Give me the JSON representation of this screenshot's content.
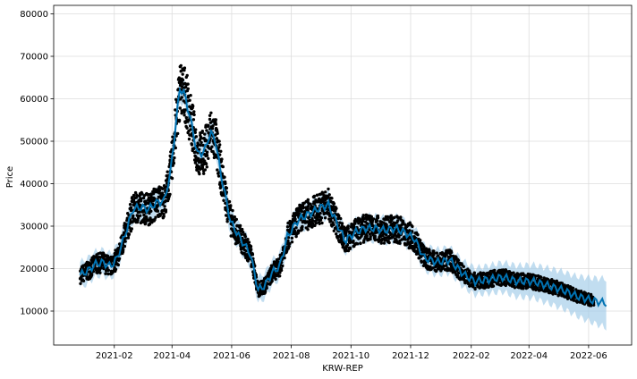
{
  "chart_data": {
    "type": "scatter",
    "xlabel": "KRW-REP",
    "ylabel": "Price",
    "x_ticks": [
      "2021-02",
      "2021-04",
      "2021-06",
      "2021-08",
      "2021-10",
      "2021-12",
      "2022-02",
      "2022-04",
      "2022-06"
    ],
    "y_ticks": [
      "10000",
      "20000",
      "30000",
      "40000",
      "50000",
      "60000",
      "70000",
      "80000"
    ],
    "xlim": [
      "2020-12-01",
      "2022-07-15"
    ],
    "ylim": [
      2000,
      82000
    ],
    "grid": true,
    "colors": {
      "observed": "#000000",
      "forecast": "#0072B2",
      "interval": "#9fcbe8"
    },
    "forecast": [
      {
        "x": "2020-12-28",
        "y": 18500
      },
      {
        "x": "2021-01-05",
        "y": 19500
      },
      {
        "x": "2021-01-12",
        "y": 21000
      },
      {
        "x": "2021-01-20",
        "y": 21500
      },
      {
        "x": "2021-01-28",
        "y": 20500
      },
      {
        "x": "2021-02-04",
        "y": 22500
      },
      {
        "x": "2021-02-12",
        "y": 28000
      },
      {
        "x": "2021-02-20",
        "y": 34000
      },
      {
        "x": "2021-02-28",
        "y": 34500
      },
      {
        "x": "2021-03-08",
        "y": 34000
      },
      {
        "x": "2021-03-16",
        "y": 35500
      },
      {
        "x": "2021-03-24",
        "y": 36000
      },
      {
        "x": "2021-03-30",
        "y": 42000
      },
      {
        "x": "2021-04-04",
        "y": 52000
      },
      {
        "x": "2021-04-09",
        "y": 62500
      },
      {
        "x": "2021-04-14",
        "y": 61000
      },
      {
        "x": "2021-04-20",
        "y": 55000
      },
      {
        "x": "2021-04-27",
        "y": 47000
      },
      {
        "x": "2021-05-04",
        "y": 47500
      },
      {
        "x": "2021-05-10",
        "y": 52000
      },
      {
        "x": "2021-05-15",
        "y": 50500
      },
      {
        "x": "2021-05-22",
        "y": 41000
      },
      {
        "x": "2021-05-31",
        "y": 31000
      },
      {
        "x": "2021-06-10",
        "y": 27000
      },
      {
        "x": "2021-06-20",
        "y": 23500
      },
      {
        "x": "2021-06-28",
        "y": 15000
      },
      {
        "x": "2021-07-05",
        "y": 16000
      },
      {
        "x": "2021-07-12",
        "y": 19000
      },
      {
        "x": "2021-07-20",
        "y": 20500
      },
      {
        "x": "2021-07-28",
        "y": 27500
      },
      {
        "x": "2021-08-08",
        "y": 31500
      },
      {
        "x": "2021-08-20",
        "y": 33000
      },
      {
        "x": "2021-09-01",
        "y": 34500
      },
      {
        "x": "2021-09-08",
        "y": 35000
      },
      {
        "x": "2021-09-15",
        "y": 31500
      },
      {
        "x": "2021-09-25",
        "y": 26500
      },
      {
        "x": "2021-10-05",
        "y": 28500
      },
      {
        "x": "2021-10-15",
        "y": 29500
      },
      {
        "x": "2021-10-25",
        "y": 29500
      },
      {
        "x": "2021-11-05",
        "y": 29000
      },
      {
        "x": "2021-11-15",
        "y": 29500
      },
      {
        "x": "2021-11-25",
        "y": 28500
      },
      {
        "x": "2021-12-05",
        "y": 27000
      },
      {
        "x": "2021-12-15",
        "y": 22500
      },
      {
        "x": "2021-12-28",
        "y": 21500
      },
      {
        "x": "2022-01-10",
        "y": 22000
      },
      {
        "x": "2022-01-25",
        "y": 18500
      },
      {
        "x": "2022-02-05",
        "y": 17000
      },
      {
        "x": "2022-02-20",
        "y": 17500
      },
      {
        "x": "2022-03-05",
        "y": 18000
      },
      {
        "x": "2022-03-20",
        "y": 17000
      },
      {
        "x": "2022-04-05",
        "y": 17000
      },
      {
        "x": "2022-04-20",
        "y": 16000
      },
      {
        "x": "2022-05-05",
        "y": 15000
      },
      {
        "x": "2022-05-20",
        "y": 13500
      },
      {
        "x": "2022-06-05",
        "y": 12500
      },
      {
        "x": "2022-06-20",
        "y": 11800
      }
    ],
    "interval_half_width": [
      {
        "x": "2020-12-28",
        "y": 3000
      },
      {
        "x": "2021-12-31",
        "y": 3000
      },
      {
        "x": "2022-02-15",
        "y": 3200
      },
      {
        "x": "2022-05-15",
        "y": 4500
      },
      {
        "x": "2022-06-20",
        "y": 5800
      }
    ]
  }
}
